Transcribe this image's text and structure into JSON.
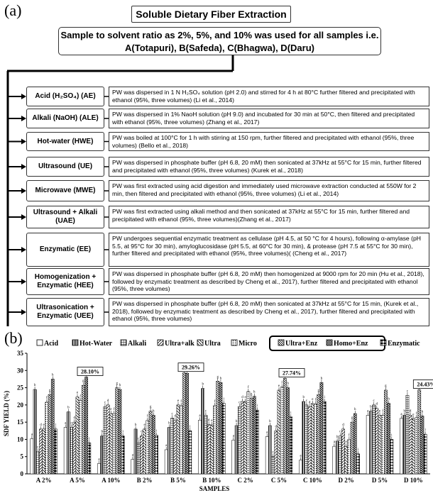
{
  "panel_a_label": "(a)",
  "panel_b_label": "(b)",
  "flow": {
    "title": "Soluble Dietary Fiber Extraction",
    "sample_line1": "Sample to solvent ratio as 2%, 5%, and 10% was used for all samples i.e.",
    "sample_line2": "A(Totapuri), B(Safeda), C(Bhagwa), D(Daru)",
    "methods": [
      {
        "label": "Acid (H₂SO₄) (AE)",
        "desc": "PW was dispersed in 1 N H₂SO₄ solution (pH 2.0) and stirred for 4 h at 80°C further filtered and precipitated with ethanol (95%, three volumes) (Li et al., 2014)"
      },
      {
        "label": "Alkali (NaOH) (ALE)",
        "desc": "PW was dispersed in 1% NaoH solution (pH 9.0) and incubated for 30 min at 50°C, then filtered and precipitated with ethanol (95%, three volumes) (Zhang et al., 2017)"
      },
      {
        "label": "Hot-water (HWE)",
        "desc": "PW was boiled at 100°C for 1 h with stirring at 150 rpm, further filtered and precipitated with ethanol (95%, three volumes) (Bello et al., 2018)"
      },
      {
        "label": "Ultrasound (UE)",
        "desc": "PW was dispersed in phosphate buffer (pH 6.8, 20 mM) then sonicated at 37kHz at 55°C for 15 min, further filtered and precipitated with ethanol (95%, three volumes) (Kurek et al., 2018)"
      },
      {
        "label": "Microwave (MWE)",
        "desc": "PW was first extracted using acid digestion and immediately used microwave extraction conducted at 550W for 2 min, then filtered and precipitated with ethanol (95%, three volumes) (Li et al., 2014)"
      },
      {
        "label": "Ultrasound + Alkali (UAE)",
        "desc": "PW was first extracted using alkali method and then sonicated at 37kHz at 55°C for 15 min, further filtered and precipitated with ethanol (95%, three volumes)(Zhang et al., 2017)"
      },
      {
        "label": "Enzymatic (EE)",
        "desc": "PW undergoes sequential enzymatic treatment as cellulase (pH 4.5, at 50 °C for 4 hours), following α-amylase (pH 5.5, at 95°C for 30 min), amyloglucosidase (pH 5.5, at 60°C for 30 min), & protease (pH 7.5 at 55°C for 30 min), further filtered and precipitated with ethanol (95%, three volumes)( (Cheng et al., 2017)"
      },
      {
        "label": "Homogenization + Enzymatic (HEE)",
        "desc": "PW was dispersed in phosphate buffer (pH 6.8, 20 mM) then homogenized at 9000 rpm for 20 min (Hu et al., 2018), followed by enzymatic treatment as described by Cheng et al., 2017), further filtered and precipitated with ethanol (95%, three volumes)"
      },
      {
        "label": "Ultrasonication + Enzymatic (UEE)",
        "desc": "PW was dispersed in phosphate buffer (pH 6.8, 20 mM) then sonicated at 37kHz at 55°C for 15 min, (Kurek et al., 2018), followed by enzymatic treatment as described by Cheng et al., 2017), further filtered and precipitated with ethanol (95%, three volumes)"
      }
    ]
  },
  "chart_data": {
    "type": "bar",
    "xlabel": "SAMPLES",
    "ylabel": "SDF YIELD (%)",
    "ylim": [
      0,
      35
    ],
    "yticks": [
      0,
      5,
      10,
      15,
      20,
      25,
      30,
      35
    ],
    "categories": [
      "A 2%",
      "A 5%",
      "A 10%",
      "B 2%",
      "B 5%",
      "B 10%",
      "C 2%",
      "C 5%",
      "C 10%",
      "D 2%",
      "D 5%",
      "D 10%"
    ],
    "series": [
      {
        "name": "Acid",
        "values": [
          10.2,
          13.5,
          3.0,
          4.2,
          7.0,
          15.6,
          9.8,
          10.8,
          4.0,
          8.0,
          17.0,
          16.1
        ]
      },
      {
        "name": "Hot-Water",
        "values": [
          24.5,
          18.0,
          11.0,
          13.0,
          13.5,
          24.8,
          14.0,
          14.0,
          21.0,
          9.5,
          18.2,
          17.0
        ]
      },
      {
        "name": "Alkali",
        "values": [
          6.5,
          13.5,
          19.5,
          9.0,
          16.2,
          17.0,
          19.5,
          5.0,
          20.0,
          11.0,
          20.0,
          22.8
        ]
      },
      {
        "name": "Ultra+alk",
        "values": [
          13.0,
          15.0,
          20.0,
          11.0,
          15.5,
          14.3,
          21.0,
          12.5,
          19.5,
          13.0,
          19.0,
          17.0
        ]
      },
      {
        "name": "Ultra",
        "values": [
          13.0,
          22.3,
          17.5,
          13.0,
          20.0,
          14.2,
          21.0,
          24.3,
          20.4,
          8.0,
          17.0,
          16.0
        ]
      },
      {
        "name": "Micro",
        "values": [
          20.8,
          21.3,
          17.5,
          15.5,
          19.8,
          19.8,
          23.9,
          25.2,
          20.3,
          10.0,
          17.0,
          16.3
        ]
      },
      {
        "name": "Ultra+Enz",
        "values": [
          23.0,
          25.7,
          25.0,
          18.2,
          29.3,
          26.9,
          21.9,
          27.7,
          23.0,
          15.0,
          24.3,
          24.4
        ]
      },
      {
        "name": "Homo+Enz",
        "values": [
          27.5,
          28.1,
          24.5,
          17.0,
          29.2,
          26.5,
          22.5,
          25.0,
          26.5,
          17.5,
          20.5,
          16.8
        ]
      },
      {
        "name": "Enzymatic",
        "values": [
          13.0,
          9.0,
          11.0,
          11.2,
          12.5,
          20.5,
          18.5,
          16.5,
          21.0,
          5.8,
          10.0,
          11.5
        ]
      }
    ],
    "annotations": [
      {
        "text": "28.10%",
        "category": "A 5%"
      },
      {
        "text": "29.26%",
        "category": "B 5%"
      },
      {
        "text": "27.74%",
        "category": "C 5%"
      },
      {
        "text": "24.43%",
        "category": "D 10%"
      }
    ],
    "patterns": [
      "blank",
      "hatch-dense",
      "grid",
      "diag-right",
      "diag-left",
      "dots",
      "diag-left-fine",
      "crosshatch",
      "diamond"
    ]
  }
}
